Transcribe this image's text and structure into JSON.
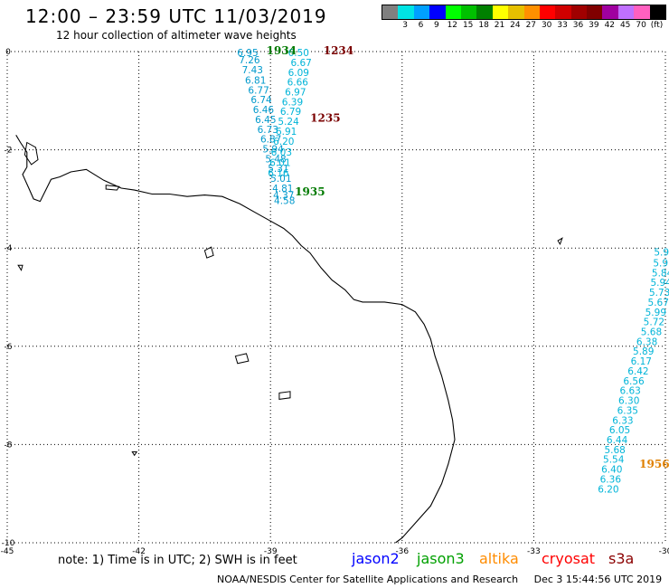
{
  "header": {
    "title": "12:00 – 23:59 UTC 11/03/2019",
    "subtitle": "12 hour collection of altimeter wave heights"
  },
  "legend": {
    "unit": "(ft)",
    "bins": [
      {
        "label": "",
        "color": "#808080"
      },
      {
        "label": "3",
        "color": "#00e4e4"
      },
      {
        "label": "6",
        "color": "#00a0ff"
      },
      {
        "label": "9",
        "color": "#0000ff"
      },
      {
        "label": "12",
        "color": "#00ff00"
      },
      {
        "label": "15",
        "color": "#00c000"
      },
      {
        "label": "18",
        "color": "#008000"
      },
      {
        "label": "21",
        "color": "#ffff00"
      },
      {
        "label": "24",
        "color": "#e6c000"
      },
      {
        "label": "27",
        "color": "#ff9000"
      },
      {
        "label": "30",
        "color": "#ff0000"
      },
      {
        "label": "33",
        "color": "#d00000"
      },
      {
        "label": "36",
        "color": "#a00000"
      },
      {
        "label": "39",
        "color": "#800000"
      },
      {
        "label": "42",
        "color": "#a000a0"
      },
      {
        "label": "45",
        "color": "#c070ff"
      },
      {
        "label": "70",
        "color": "#ff60c0"
      },
      {
        "label": "",
        "color": "#000000"
      }
    ]
  },
  "axes": {
    "lon_ticks": [
      "-45",
      "-42",
      "-39",
      "-36",
      "-33",
      "-30"
    ],
    "lat_ticks": [
      "0",
      "-2",
      "-4",
      "-6",
      "-8",
      "-10"
    ],
    "lon_range": [
      -45,
      -30
    ],
    "lat_range": [
      -10,
      0
    ]
  },
  "tracks": [
    {
      "color": "#0099cc",
      "points": [
        {
          "lon": -39.52,
          "lat": -0.02,
          "swh": "6.95"
        },
        {
          "lon": -39.48,
          "lat": -0.17,
          "swh": "7.26"
        },
        {
          "lon": -39.41,
          "lat": -0.37,
          "swh": "7.43"
        },
        {
          "lon": -39.34,
          "lat": -0.58,
          "swh": "6.81"
        },
        {
          "lon": -39.27,
          "lat": -0.78,
          "swh": "6.77"
        },
        {
          "lon": -39.21,
          "lat": -0.98,
          "swh": "6.74"
        },
        {
          "lon": -39.16,
          "lat": -1.18,
          "swh": "6.46"
        },
        {
          "lon": -39.11,
          "lat": -1.38,
          "swh": "6.45"
        },
        {
          "lon": -39.06,
          "lat": -1.58,
          "swh": "6.73"
        },
        {
          "lon": -38.99,
          "lat": -1.78,
          "swh": "6.87"
        },
        {
          "lon": -38.94,
          "lat": -1.98,
          "swh": "5.94"
        },
        {
          "lon": -38.88,
          "lat": -2.18,
          "swh": "5.48"
        },
        {
          "lon": -38.82,
          "lat": -2.38,
          "swh": "5.31"
        },
        {
          "lon": -38.76,
          "lat": -2.58,
          "swh": "5.01"
        },
        {
          "lon": -38.72,
          "lat": -2.78,
          "swh": "4.81"
        },
        {
          "lon": -38.7,
          "lat": -2.92,
          "swh": "4.37"
        },
        {
          "lon": -38.68,
          "lat": -3.03,
          "swh": "4.58"
        }
      ]
    },
    {
      "color": "#00b4d8",
      "points": [
        {
          "lon": -38.36,
          "lat": -0.02,
          "swh": "6.50"
        },
        {
          "lon": -38.3,
          "lat": -0.22,
          "swh": "6.67"
        },
        {
          "lon": -38.36,
          "lat": -0.42,
          "swh": "6.09"
        },
        {
          "lon": -38.38,
          "lat": -0.62,
          "swh": "6.66"
        },
        {
          "lon": -38.43,
          "lat": -0.82,
          "swh": "6.97"
        },
        {
          "lon": -38.5,
          "lat": -1.02,
          "swh": "6.39"
        },
        {
          "lon": -38.54,
          "lat": -1.22,
          "swh": "6.79"
        },
        {
          "lon": -38.59,
          "lat": -1.42,
          "swh": "5.24"
        },
        {
          "lon": -38.64,
          "lat": -1.62,
          "swh": "6.91"
        },
        {
          "lon": -38.7,
          "lat": -1.82,
          "swh": "6.20"
        },
        {
          "lon": -38.75,
          "lat": -2.04,
          "swh": "6.03"
        },
        {
          "lon": -38.78,
          "lat": -2.26,
          "swh": "6.01"
        },
        {
          "lon": -38.82,
          "lat": -2.47,
          "swh": "6.16"
        }
      ]
    },
    {
      "color": "#00b4d8",
      "points": [
        {
          "lon": -30.02,
          "lat": -4.08,
          "swh": "5.96"
        },
        {
          "lon": -30.04,
          "lat": -4.3,
          "swh": "5.91"
        },
        {
          "lon": -30.07,
          "lat": -4.5,
          "swh": "5.84"
        },
        {
          "lon": -30.1,
          "lat": -4.7,
          "swh": "5.94"
        },
        {
          "lon": -30.13,
          "lat": -4.9,
          "swh": "5.73"
        },
        {
          "lon": -30.16,
          "lat": -5.1,
          "swh": "5.67"
        },
        {
          "lon": -30.22,
          "lat": -5.3,
          "swh": "5.99"
        },
        {
          "lon": -30.26,
          "lat": -5.5,
          "swh": "5.72"
        },
        {
          "lon": -30.32,
          "lat": -5.7,
          "swh": "5.68"
        },
        {
          "lon": -30.42,
          "lat": -5.9,
          "swh": "6.38"
        },
        {
          "lon": -30.5,
          "lat": -6.1,
          "swh": "5.89"
        },
        {
          "lon": -30.55,
          "lat": -6.3,
          "swh": "6.17"
        },
        {
          "lon": -30.62,
          "lat": -6.5,
          "swh": "6.42"
        },
        {
          "lon": -30.72,
          "lat": -6.7,
          "swh": "6.56"
        },
        {
          "lon": -30.8,
          "lat": -6.9,
          "swh": "6.63"
        },
        {
          "lon": -30.83,
          "lat": -7.1,
          "swh": "6.30"
        },
        {
          "lon": -30.86,
          "lat": -7.3,
          "swh": "6.35"
        },
        {
          "lon": -30.97,
          "lat": -7.5,
          "swh": "6.33"
        },
        {
          "lon": -31.04,
          "lat": -7.7,
          "swh": "6.05"
        },
        {
          "lon": -31.1,
          "lat": -7.9,
          "swh": "6.44"
        },
        {
          "lon": -31.15,
          "lat": -8.1,
          "swh": "5.68"
        },
        {
          "lon": -31.18,
          "lat": -8.3,
          "swh": "5.54"
        },
        {
          "lon": -31.22,
          "lat": -8.5,
          "swh": "6.40"
        },
        {
          "lon": -31.25,
          "lat": -8.7,
          "swh": "6.36"
        },
        {
          "lon": -31.3,
          "lat": -8.9,
          "swh": "6.20"
        }
      ]
    }
  ],
  "time_labels": [
    {
      "text": "1934",
      "color": "#007a00",
      "lon": -38.75,
      "lat": 0.02
    },
    {
      "text": "1234",
      "color": "#7a0000",
      "lon": -37.45,
      "lat": 0.02
    },
    {
      "text": "1235",
      "color": "#7a0000",
      "lon": -37.75,
      "lat": -1.35
    },
    {
      "text": "1935",
      "color": "#007a00",
      "lon": -38.1,
      "lat": -2.85
    },
    {
      "text": "1956",
      "color": "#e08000",
      "lon": -30.25,
      "lat": -8.4
    }
  ],
  "coastline_points": [
    [
      -44.8,
      -1.7
    ],
    [
      -44.7,
      -1.85
    ],
    [
      -44.55,
      -2.05
    ],
    [
      -44.55,
      -2.35
    ],
    [
      -44.65,
      -2.5
    ],
    [
      -44.5,
      -2.8
    ],
    [
      -44.4,
      -3.0
    ],
    [
      -44.25,
      -3.05
    ],
    [
      -44.0,
      -2.6
    ],
    [
      -43.8,
      -2.55
    ],
    [
      -43.55,
      -2.45
    ],
    [
      -43.2,
      -2.4
    ],
    [
      -42.8,
      -2.62
    ],
    [
      -42.4,
      -2.78
    ],
    [
      -42.1,
      -2.82
    ],
    [
      -41.7,
      -2.9
    ],
    [
      -41.3,
      -2.9
    ],
    [
      -40.9,
      -2.95
    ],
    [
      -40.5,
      -2.92
    ],
    [
      -40.1,
      -2.95
    ],
    [
      -39.7,
      -3.1
    ],
    [
      -39.3,
      -3.3
    ],
    [
      -39.0,
      -3.45
    ],
    [
      -38.7,
      -3.6
    ],
    [
      -38.5,
      -3.75
    ],
    [
      -38.3,
      -3.95
    ],
    [
      -38.1,
      -4.1
    ],
    [
      -37.85,
      -4.4
    ],
    [
      -37.6,
      -4.65
    ],
    [
      -37.3,
      -4.85
    ],
    [
      -37.1,
      -5.05
    ],
    [
      -36.9,
      -5.1
    ],
    [
      -36.4,
      -5.1
    ],
    [
      -36.0,
      -5.15
    ],
    [
      -35.7,
      -5.3
    ],
    [
      -35.5,
      -5.55
    ],
    [
      -35.35,
      -5.85
    ],
    [
      -35.25,
      -6.2
    ],
    [
      -35.1,
      -6.6
    ],
    [
      -34.95,
      -7.1
    ],
    [
      -34.85,
      -7.5
    ],
    [
      -34.8,
      -7.9
    ],
    [
      -34.95,
      -8.4
    ],
    [
      -35.1,
      -8.8
    ],
    [
      -35.35,
      -9.25
    ],
    [
      -35.7,
      -9.6
    ],
    [
      -36.0,
      -9.9
    ],
    [
      -36.15,
      -10.0
    ]
  ],
  "islands": [
    [
      [
        -44.55,
        -1.85
      ],
      [
        -44.35,
        -1.95
      ],
      [
        -44.3,
        -2.2
      ],
      [
        -44.45,
        -2.3
      ],
      [
        -44.6,
        -2.1
      ]
    ],
    [
      [
        -42.75,
        -2.72
      ],
      [
        -42.45,
        -2.75
      ],
      [
        -42.5,
        -2.82
      ],
      [
        -42.75,
        -2.8
      ]
    ],
    [
      [
        -40.5,
        -4.05
      ],
      [
        -40.35,
        -3.98
      ],
      [
        -40.3,
        -4.15
      ],
      [
        -40.45,
        -4.2
      ]
    ],
    [
      [
        -39.8,
        -6.2
      ],
      [
        -39.55,
        -6.15
      ],
      [
        -39.5,
        -6.3
      ],
      [
        -39.75,
        -6.35
      ]
    ],
    [
      [
        -38.8,
        -6.95
      ],
      [
        -38.55,
        -6.92
      ],
      [
        -38.55,
        -7.05
      ],
      [
        -38.8,
        -7.08
      ]
    ],
    [
      [
        -44.75,
        -4.35
      ],
      [
        -44.65,
        -4.35
      ],
      [
        -44.68,
        -4.45
      ]
    ],
    [
      [
        -32.45,
        -3.85
      ],
      [
        -32.35,
        -3.8
      ],
      [
        -32.4,
        -3.92
      ]
    ],
    [
      [
        -42.15,
        -8.15
      ],
      [
        -42.05,
        -8.15
      ],
      [
        -42.1,
        -8.22
      ]
    ]
  ],
  "footer": {
    "note": "note:  1) Time is in UTC;  2) SWH is in feet",
    "satellites": [
      {
        "name": "jason2",
        "color": "#0000ff"
      },
      {
        "name": "jason3",
        "color": "#00a000"
      },
      {
        "name": "altika",
        "color": "#ff8c00"
      },
      {
        "name": "cryosat",
        "color": "#ff0000"
      },
      {
        "name": "s3a",
        "color": "#8b0000"
      }
    ],
    "credit": "NOAA/NESDIS Center for Satellite Applications and Research",
    "generated": "Dec  3 15:44:56 UTC 2019"
  }
}
